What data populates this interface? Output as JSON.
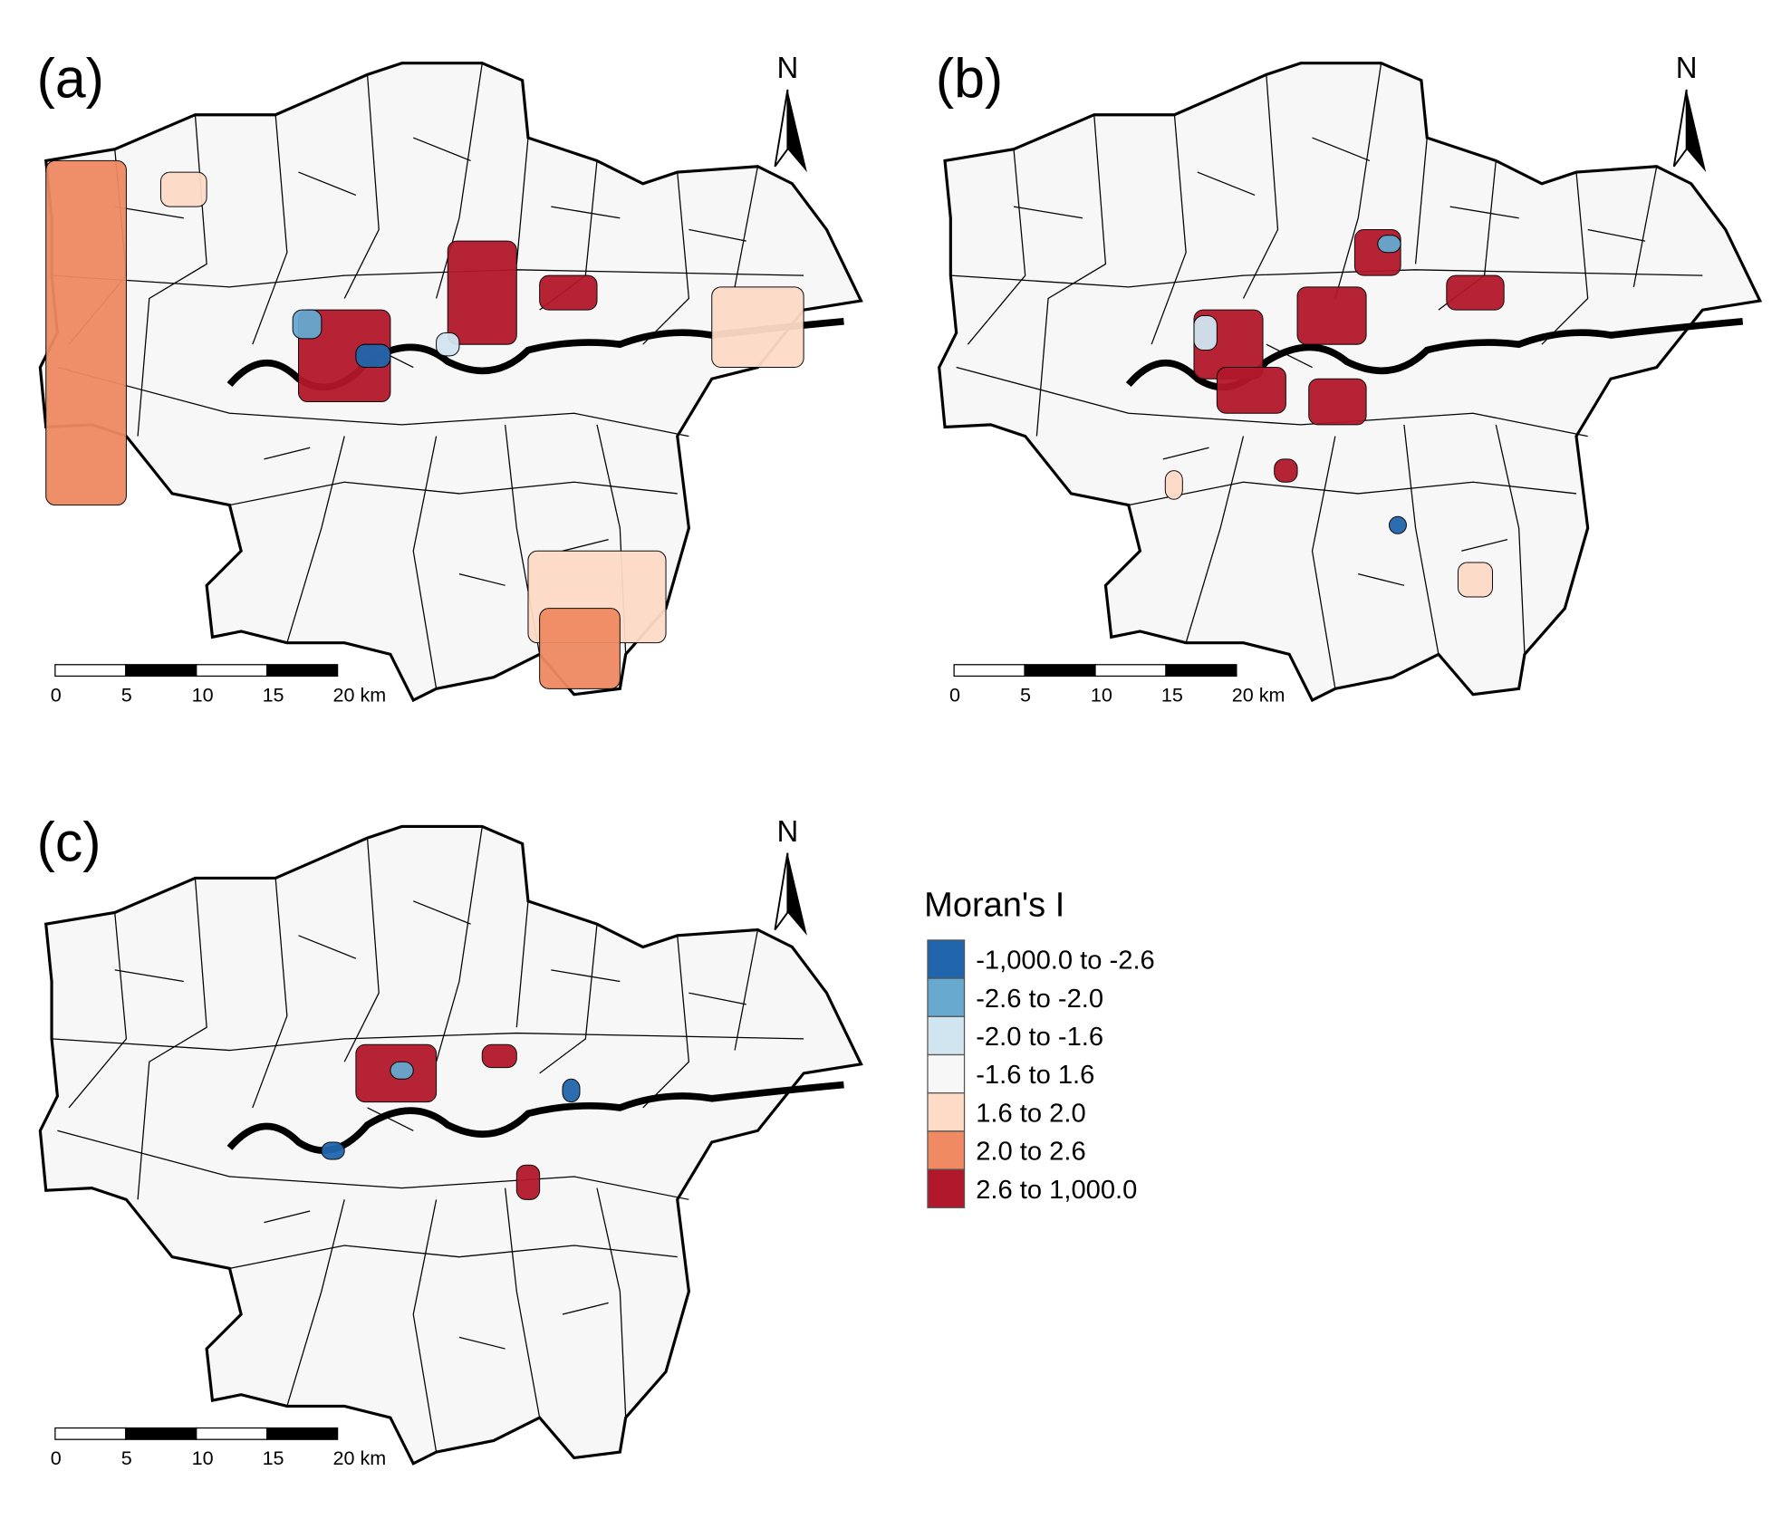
{
  "panels": [
    {
      "label": "(a)",
      "north": "N",
      "scale_labels": [
        "0",
        "5",
        "10",
        "15",
        "20 km"
      ]
    },
    {
      "label": "(b)",
      "north": "N",
      "scale_labels": [
        "0",
        "5",
        "10",
        "15",
        "20 km"
      ]
    },
    {
      "label": "(c)",
      "north": "N",
      "scale_labels": [
        "0",
        "5",
        "10",
        "15",
        "20 km"
      ]
    }
  ],
  "legend": {
    "title": "Moran's I",
    "items": [
      {
        "label": "-1,000.0 to -2.6",
        "color": "#2166ac"
      },
      {
        "label": "-2.6 to -2.0",
        "color": "#67a9cf"
      },
      {
        "label": "-2.0 to -1.6",
        "color": "#d1e5f0"
      },
      {
        "label": "-1.6 to 1.6",
        "color": "#f7f7f7"
      },
      {
        "label": "1.6 to 2.0",
        "color": "#fddbc7"
      },
      {
        "label": "2.0 to 2.6",
        "color": "#ef8a62"
      },
      {
        "label": "2.6 to 1,000.0",
        "color": "#b2182b"
      }
    ]
  }
}
